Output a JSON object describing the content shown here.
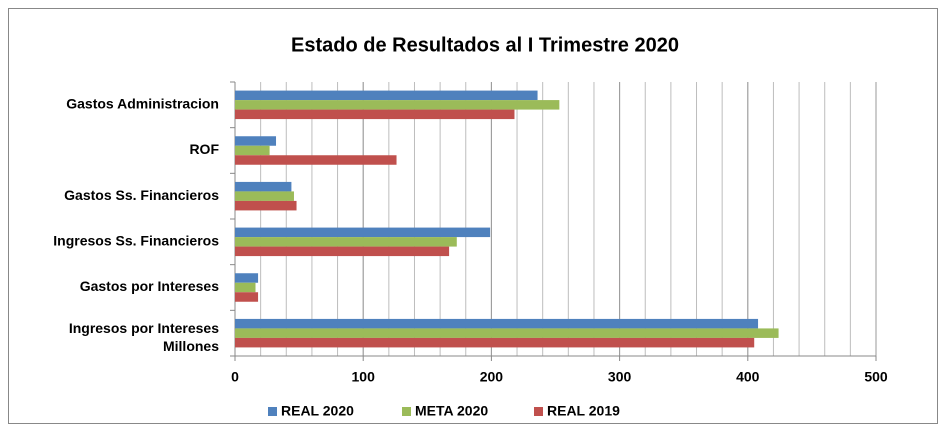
{
  "chart_data": {
    "type": "hbar",
    "title": "Estado de Resultados  al I Trimestre 2020",
    "categories": [
      "Gastos Administracion",
      "ROF",
      "Gastos Ss. Financieros",
      "Ingresos Ss. Financieros",
      "Gastos por Intereses",
      "Ingresos por Intereses"
    ],
    "x_label": "Millones",
    "series": [
      {
        "name": "REAL 2020",
        "color": "#4f81bd",
        "values": [
          236,
          32,
          44,
          199,
          18,
          408
        ]
      },
      {
        "name": "META 2020",
        "color": "#9bbb59",
        "values": [
          253,
          27,
          46,
          173,
          16,
          424
        ]
      },
      {
        "name": "REAL 2019",
        "color": "#c0504d",
        "values": [
          218,
          126,
          48,
          167,
          18,
          405
        ]
      }
    ],
    "xlim": [
      0,
      500
    ],
    "xticks": [
      0,
      100,
      200,
      300,
      400,
      500
    ],
    "grid": true,
    "grid_step": 20,
    "legend": "bottom"
  }
}
